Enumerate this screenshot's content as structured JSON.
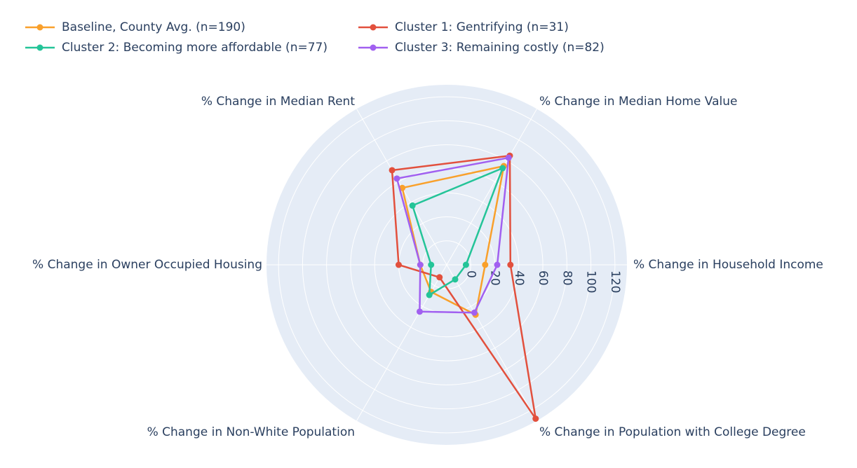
{
  "chart_data": {
    "type": "radar",
    "axes": [
      "% Change in Household Income",
      "% Change in Median Home Value",
      "% Change in Median Rent",
      "% Change in Owner Occupied Housing",
      "% Change in Non-White Population",
      "% Change in Population with College Degree"
    ],
    "radial_ticks": [
      "0",
      "20",
      "40",
      "60",
      "80",
      "100",
      "120"
    ],
    "radial_range": [
      -20,
      130
    ],
    "legend_placement": "top-left",
    "grid": true,
    "series": [
      {
        "name": "Baseline, County Avg. (n=190)",
        "color": "#F9A02B",
        "values": [
          12,
          75,
          54,
          2,
          6,
          28
        ]
      },
      {
        "name": "Cluster 1: Gentrifying (n=31)",
        "color": "#E2503D",
        "values": [
          33,
          85,
          71,
          20,
          -8,
          128
        ]
      },
      {
        "name": "Cluster 2: Becoming more affordable (n=77)",
        "color": "#24C498",
        "values": [
          -4,
          73,
          37,
          -7,
          9,
          -6
        ]
      },
      {
        "name": "Cluster 3: Remaining costly (n=82)",
        "color": "#A160F0",
        "values": [
          22,
          83,
          63,
          2,
          25,
          26
        ]
      }
    ]
  }
}
